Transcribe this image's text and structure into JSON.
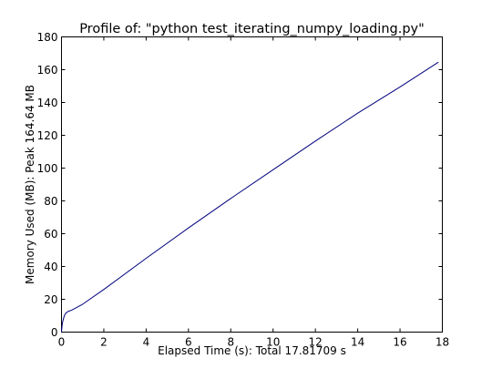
{
  "chart_data": {
    "type": "line",
    "title": "Profile of: \"python test_iterating_numpy_loading.py\"",
    "xlabel": "Elapsed Time (s): Total 17.81709 s",
    "ylabel": "Memory Used (MB): Peak 164.64 MB",
    "xlim": [
      0,
      18
    ],
    "ylim": [
      0,
      180
    ],
    "xticks": [
      0,
      2,
      4,
      6,
      8,
      10,
      12,
      14,
      16,
      18
    ],
    "yticks": [
      0,
      20,
      40,
      60,
      80,
      100,
      120,
      140,
      160,
      180
    ],
    "xtick_labels": [
      "0",
      "2",
      "4",
      "6",
      "8",
      "10",
      "12",
      "14",
      "16",
      "18"
    ],
    "ytick_labels": [
      "0",
      "20",
      "40",
      "60",
      "80",
      "100",
      "120",
      "140",
      "160",
      "180"
    ],
    "grid": false,
    "series": [
      {
        "color": "#00007f",
        "x": [
          0,
          0.02,
          0.05,
          0.1,
          0.15,
          0.2,
          0.3,
          0.5,
          1,
          2,
          4,
          6,
          8,
          10,
          12,
          14,
          16,
          17.81709
        ],
        "y": [
          0,
          3,
          6,
          8.5,
          10.5,
          11.5,
          12.5,
          13.5,
          17,
          26,
          45,
          63.5,
          81.5,
          99,
          116.5,
          133.5,
          149.5,
          164.64
        ]
      }
    ]
  }
}
